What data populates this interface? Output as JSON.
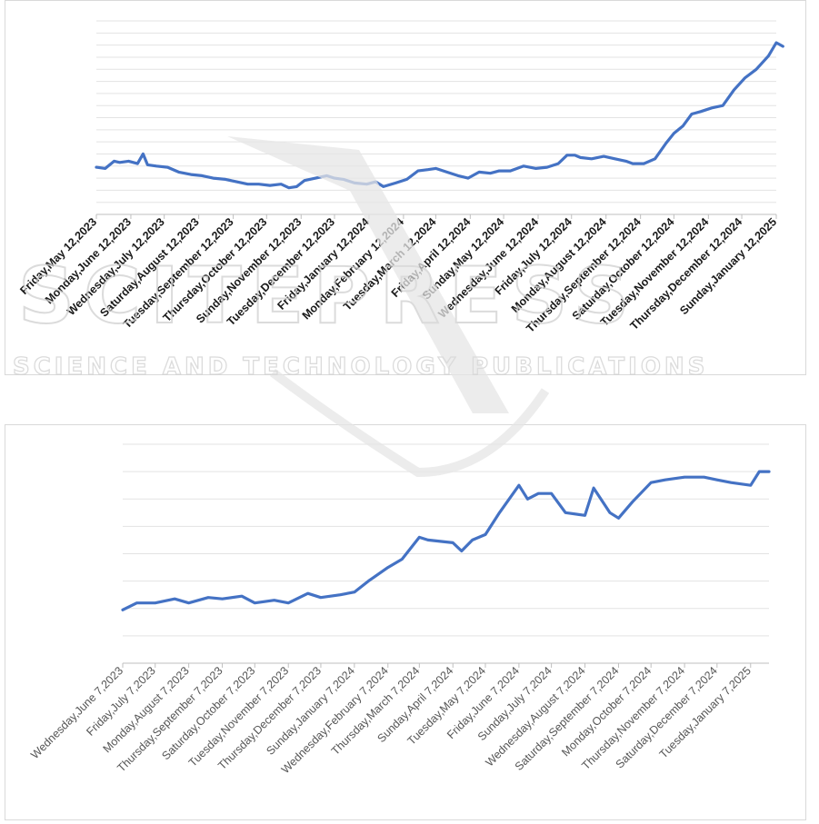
{
  "colors": {
    "series": "#4472c4",
    "grid": "#e3e3e3",
    "axis": "#bfbfbf"
  },
  "watermark": {
    "logo_text": "SCITEPRESS",
    "subtitle": "SCIENCE AND TECHNOLOGY PUBLICATIONS"
  },
  "chart_data": [
    {
      "type": "line",
      "title": "",
      "xlabel": "",
      "ylabel": "",
      "grid": true,
      "legend": "none",
      "y_tick_labels_shown": false,
      "gridline_count": 16,
      "x_tick_labels": [
        "Friday,May 12,2023",
        "Monday,June 12,2023",
        "Wednesday,July 12,2023",
        "Saturday,August 12,2023",
        "Tuesday,September 12,2023",
        "Thursday,October 12,2023",
        "Sunday,November 12,2023",
        "Tuesday,December 12,2023",
        "Friday,January 12,2024",
        "Monday,February 12,2024",
        "Tuesday,March 12,2024",
        "Friday,April 12,2024",
        "Sunday,May 12,2024",
        "Wednesday,June 12,2024",
        "Friday,July 12,2024",
        "Monday,August 12,2024",
        "Thursday,September 12,2024",
        "Saturday,October 12,2024",
        "Tuesday,November 12,2024",
        "Thursday,December 12,2024",
        "Sunday,January 12,2025"
      ],
      "x_ticks": [
        "2023-05-12",
        "2023-06-12",
        "2023-07-12",
        "2023-08-12",
        "2023-09-12",
        "2023-10-12",
        "2023-11-12",
        "2023-12-12",
        "2024-01-12",
        "2024-02-12",
        "2024-03-12",
        "2024-04-12",
        "2024-05-12",
        "2024-06-12",
        "2024-07-12",
        "2024-08-12",
        "2024-09-12",
        "2024-10-12",
        "2024-11-12",
        "2024-12-12",
        "2025-01-12"
      ],
      "xlim": [
        "2023-05-12",
        "2025-01-12"
      ],
      "ylim": [
        0,
        16
      ],
      "series": [
        {
          "x": [
            "2023-05-12",
            "2023-05-20",
            "2023-05-28",
            "2023-06-02",
            "2023-06-10",
            "2023-06-18",
            "2023-06-23",
            "2023-06-27",
            "2023-07-05",
            "2023-07-15",
            "2023-07-25",
            "2023-08-05",
            "2023-08-15",
            "2023-08-25",
            "2023-09-05",
            "2023-09-15",
            "2023-09-25",
            "2023-10-05",
            "2023-10-15",
            "2023-10-25",
            "2023-11-01",
            "2023-11-08",
            "2023-11-15",
            "2023-11-25",
            "2023-12-05",
            "2023-12-12",
            "2023-12-20",
            "2023-12-30",
            "2024-01-10",
            "2024-01-18",
            "2024-01-25",
            "2024-02-05",
            "2024-02-15",
            "2024-02-25",
            "2024-03-05",
            "2024-03-12",
            "2024-03-22",
            "2024-04-01",
            "2024-04-10",
            "2024-04-20",
            "2024-04-30",
            "2024-05-08",
            "2024-05-18",
            "2024-05-30",
            "2024-06-10",
            "2024-06-20",
            "2024-06-30",
            "2024-07-08",
            "2024-07-15",
            "2024-07-20",
            "2024-07-30",
            "2024-08-10",
            "2024-08-20",
            "2024-08-30",
            "2024-09-05",
            "2024-09-15",
            "2024-09-25",
            "2024-10-05",
            "2024-10-12",
            "2024-10-20",
            "2024-10-28",
            "2024-11-05",
            "2024-11-15",
            "2024-11-25",
            "2024-12-05",
            "2024-12-15",
            "2024-12-25",
            "2025-01-05",
            "2025-01-12",
            "2025-01-18"
          ],
          "y": [
            3.9,
            3.8,
            4.4,
            4.3,
            4.4,
            4.2,
            5.0,
            4.1,
            4.0,
            3.9,
            3.5,
            3.3,
            3.2,
            3.0,
            2.9,
            2.7,
            2.5,
            2.5,
            2.4,
            2.5,
            2.2,
            2.3,
            2.8,
            3.0,
            3.2,
            3.0,
            2.9,
            2.6,
            2.5,
            2.7,
            2.3,
            2.6,
            2.9,
            3.6,
            3.7,
            3.8,
            3.5,
            3.2,
            3.0,
            3.5,
            3.4,
            3.6,
            3.6,
            4.0,
            3.8,
            3.9,
            4.2,
            4.9,
            4.9,
            4.7,
            4.6,
            4.8,
            4.6,
            4.4,
            4.2,
            4.2,
            4.6,
            5.9,
            6.7,
            7.3,
            8.3,
            8.5,
            8.8,
            9.0,
            10.3,
            11.3,
            12.0,
            13.1,
            14.2,
            13.9
          ]
        }
      ]
    },
    {
      "type": "line",
      "title": "",
      "xlabel": "",
      "ylabel": "",
      "grid": true,
      "legend": "none",
      "y_tick_labels_shown": false,
      "gridline_count": 8,
      "x_tick_labels": [
        "Wednesday,June 7,2023",
        "Friday,July 7,2023",
        "Monday,August 7,2023",
        "Thursday,September 7,2023",
        "Saturday,October 7,2023",
        "Tuesday,November 7,2023",
        "Thursday,December 7,2023",
        "Sunday,January 7,2024",
        "Wednesday,February 7,2024",
        "Thursday,March 7,2024",
        "Sunday,April 7,2024",
        "Tuesday,May 7,2024",
        "Friday,June 7,2024",
        "Sunday,July 7,2024",
        "Wednesday,August 7,2024",
        "Saturday,September 7,2024",
        "Monday,October 7,2024",
        "Thursday,November 7,2024",
        "Saturday,December 7,2024",
        "Tuesday,January 7,2025"
      ],
      "x_ticks": [
        "2023-06-07",
        "2023-07-07",
        "2023-08-07",
        "2023-09-07",
        "2023-10-07",
        "2023-11-07",
        "2023-12-07",
        "2024-01-07",
        "2024-02-07",
        "2024-03-07",
        "2024-04-07",
        "2024-05-07",
        "2024-06-07",
        "2024-07-07",
        "2024-08-07",
        "2024-09-07",
        "2024-10-07",
        "2024-11-07",
        "2024-12-07",
        "2025-01-07"
      ],
      "xlim": [
        "2023-06-07",
        "2025-01-24"
      ],
      "ylim": [
        0,
        8
      ],
      "series": [
        {
          "x": [
            "2023-06-07",
            "2023-06-20",
            "2023-07-07",
            "2023-07-25",
            "2023-08-07",
            "2023-08-25",
            "2023-09-07",
            "2023-09-25",
            "2023-10-07",
            "2023-10-25",
            "2023-11-07",
            "2023-11-25",
            "2023-12-07",
            "2023-12-25",
            "2024-01-07",
            "2024-01-20",
            "2024-02-07",
            "2024-02-20",
            "2024-03-07",
            "2024-03-15",
            "2024-04-07",
            "2024-04-15",
            "2024-04-25",
            "2024-05-07",
            "2024-05-20",
            "2024-06-07",
            "2024-06-15",
            "2024-06-25",
            "2024-07-07",
            "2024-07-20",
            "2024-08-07",
            "2024-08-15",
            "2024-08-30",
            "2024-09-07",
            "2024-09-20",
            "2024-10-07",
            "2024-10-20",
            "2024-11-07",
            "2024-11-25",
            "2024-12-07",
            "2024-12-20",
            "2025-01-07",
            "2025-01-15",
            "2025-01-24"
          ],
          "y": [
            1.95,
            2.2,
            2.2,
            2.35,
            2.2,
            2.4,
            2.35,
            2.45,
            2.2,
            2.3,
            2.2,
            2.55,
            2.4,
            2.5,
            2.6,
            3.0,
            3.5,
            3.8,
            4.6,
            4.5,
            4.4,
            4.1,
            4.5,
            4.7,
            5.5,
            6.5,
            6.0,
            6.2,
            6.2,
            5.5,
            5.4,
            6.4,
            5.5,
            5.3,
            5.9,
            6.6,
            6.7,
            6.8,
            6.8,
            6.7,
            6.6,
            6.5,
            7.0,
            7.0
          ]
        }
      ]
    }
  ]
}
